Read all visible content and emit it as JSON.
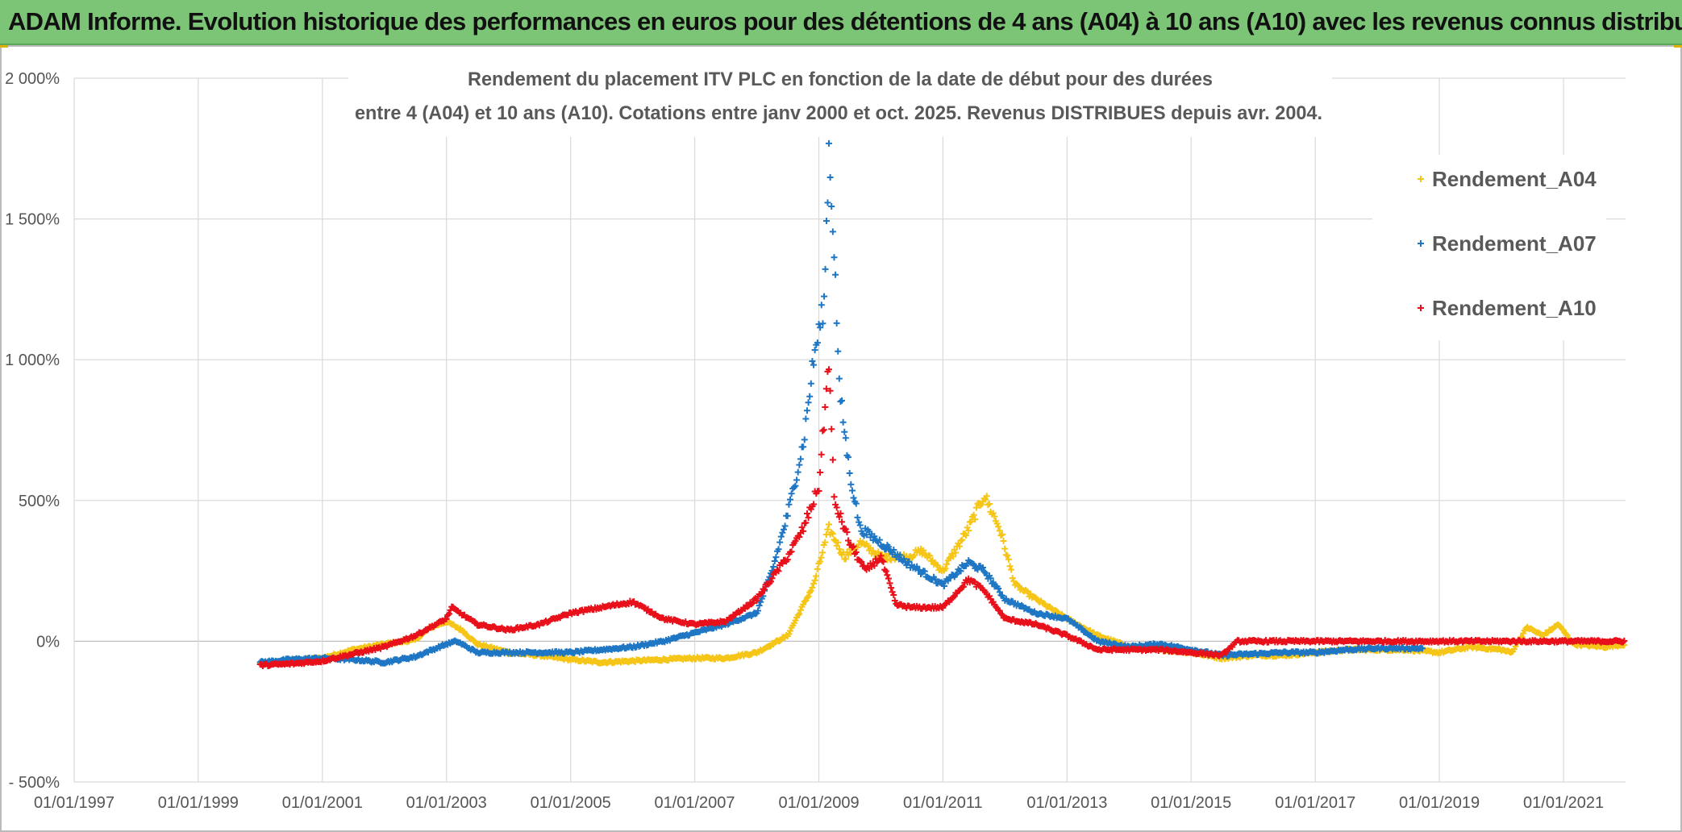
{
  "banner": {
    "title": "ADAM Informe. Evolution historique des performances en euros pour des détentions de 4 ans (A04) à 10 ans (A10) avec les revenus connus distribués"
  },
  "colors": {
    "banner_bg": "#7cc576",
    "A04": "#f5c518",
    "A07": "#1f77c4",
    "A10": "#e8101a",
    "grid": "#d9d9d9"
  },
  "chart_data": {
    "type": "scatter",
    "title_line1": "Rendement du placement ITV PLC en fonction de la date de début pour des durées",
    "title_line2": "entre 4 (A04) et 10 ans (A10). Cotations entre janv 2000 et oct. 2025. Revenus DISTRIBUES depuis avr. 2004.",
    "xlabel": "",
    "ylabel": "",
    "x_axis": "date",
    "xlim": [
      "1997-01-01",
      "2022-01-01"
    ],
    "ylim": [
      -500,
      2000
    ],
    "y_ticks": [
      -500,
      0,
      500,
      1000,
      1500,
      2000
    ],
    "y_tick_labels": [
      "- 500%",
      "0%",
      "500%",
      "1 000%",
      "1 500%",
      "2 000%"
    ],
    "x_ticks": [
      "1997-01-01",
      "1999-01-01",
      "2001-01-01",
      "2003-01-01",
      "2005-01-01",
      "2007-01-01",
      "2009-01-01",
      "2011-01-01",
      "2013-01-01",
      "2015-01-01",
      "2017-01-01",
      "2019-01-01",
      "2021-01-01"
    ],
    "x_tick_labels": [
      "01/01/1997",
      "01/01/1999",
      "01/01/2001",
      "01/01/2003",
      "01/01/2005",
      "01/01/2007",
      "01/01/2009",
      "01/01/2011",
      "01/01/2013",
      "01/01/2015",
      "01/01/2017",
      "01/01/2019",
      "01/01/2021"
    ],
    "grid": true,
    "legend_position": "top-right",
    "marker": "+",
    "series": [
      {
        "name": "Rendement_A04",
        "color": "#f5c518",
        "points": [
          [
            "2000-01-01",
            -80
          ],
          [
            "2000-07-01",
            -70
          ],
          [
            "2001-01-01",
            -60
          ],
          [
            "2001-07-01",
            -30
          ],
          [
            "2002-01-01",
            -10
          ],
          [
            "2002-07-01",
            5
          ],
          [
            "2002-10-01",
            50
          ],
          [
            "2003-01-01",
            70
          ],
          [
            "2003-04-01",
            40
          ],
          [
            "2003-07-01",
            -10
          ],
          [
            "2004-01-01",
            -40
          ],
          [
            "2004-07-01",
            -50
          ],
          [
            "2005-01-01",
            -65
          ],
          [
            "2005-07-01",
            -75
          ],
          [
            "2006-01-01",
            -70
          ],
          [
            "2006-07-01",
            -65
          ],
          [
            "2007-01-01",
            -60
          ],
          [
            "2007-07-01",
            -60
          ],
          [
            "2008-01-01",
            -40
          ],
          [
            "2008-07-01",
            20
          ],
          [
            "2008-12-01",
            200
          ],
          [
            "2009-03-01",
            400
          ],
          [
            "2009-06-01",
            300
          ],
          [
            "2009-09-01",
            350
          ],
          [
            "2010-01-01",
            300
          ],
          [
            "2010-06-01",
            300
          ],
          [
            "2010-09-01",
            320
          ],
          [
            "2011-01-01",
            250
          ],
          [
            "2011-06-01",
            400
          ],
          [
            "2011-09-01",
            520
          ],
          [
            "2011-12-01",
            400
          ],
          [
            "2012-03-01",
            200
          ],
          [
            "2012-07-01",
            150
          ],
          [
            "2013-01-01",
            80
          ],
          [
            "2013-07-01",
            20
          ],
          [
            "2014-01-01",
            -20
          ],
          [
            "2014-07-01",
            -30
          ],
          [
            "2015-01-01",
            -40
          ],
          [
            "2015-07-01",
            -60
          ],
          [
            "2016-01-01",
            -50
          ],
          [
            "2016-07-01",
            -50
          ],
          [
            "2017-01-01",
            -40
          ],
          [
            "2017-07-01",
            -30
          ],
          [
            "2018-01-01",
            -30
          ],
          [
            "2018-07-01",
            -30
          ],
          [
            "2019-01-01",
            -40
          ],
          [
            "2019-07-01",
            -20
          ],
          [
            "2020-01-01",
            -30
          ],
          [
            "2020-03-01",
            -40
          ],
          [
            "2020-06-01",
            50
          ],
          [
            "2020-09-01",
            20
          ],
          [
            "2020-12-01",
            60
          ],
          [
            "2021-03-01",
            -10
          ],
          [
            "2021-09-01",
            -20
          ],
          [
            "2022-01-01",
            -10
          ]
        ]
      },
      {
        "name": "Rendement_A07",
        "color": "#1f77c4",
        "points": [
          [
            "2000-01-01",
            -75
          ],
          [
            "2000-07-01",
            -65
          ],
          [
            "2001-01-01",
            -60
          ],
          [
            "2001-07-01",
            -65
          ],
          [
            "2002-01-01",
            -75
          ],
          [
            "2002-07-01",
            -55
          ],
          [
            "2003-01-01",
            -10
          ],
          [
            "2003-03-01",
            0
          ],
          [
            "2003-07-01",
            -40
          ],
          [
            "2004-01-01",
            -40
          ],
          [
            "2004-07-01",
            -40
          ],
          [
            "2005-01-01",
            -40
          ],
          [
            "2005-07-01",
            -30
          ],
          [
            "2006-01-01",
            -20
          ],
          [
            "2006-07-01",
            0
          ],
          [
            "2007-01-01",
            30
          ],
          [
            "2007-07-01",
            60
          ],
          [
            "2008-01-01",
            100
          ],
          [
            "2008-04-01",
            250
          ],
          [
            "2008-07-01",
            450
          ],
          [
            "2008-10-01",
            700
          ],
          [
            "2008-12-01",
            1000
          ],
          [
            "2009-02-01",
            1200
          ],
          [
            "2009-03-01",
            1750
          ],
          [
            "2009-04-01",
            1400
          ],
          [
            "2009-05-01",
            900
          ],
          [
            "2009-07-01",
            600
          ],
          [
            "2009-09-01",
            400
          ],
          [
            "2010-01-01",
            350
          ],
          [
            "2010-06-01",
            280
          ],
          [
            "2011-01-01",
            200
          ],
          [
            "2011-06-01",
            280
          ],
          [
            "2011-09-01",
            250
          ],
          [
            "2012-01-01",
            150
          ],
          [
            "2012-07-01",
            100
          ],
          [
            "2013-01-01",
            80
          ],
          [
            "2013-07-01",
            0
          ],
          [
            "2014-01-01",
            -20
          ],
          [
            "2014-07-01",
            -10
          ],
          [
            "2015-01-01",
            -30
          ],
          [
            "2015-07-01",
            -50
          ],
          [
            "2016-01-01",
            -45
          ],
          [
            "2016-07-01",
            -40
          ],
          [
            "2017-01-01",
            -40
          ],
          [
            "2017-07-01",
            -30
          ],
          [
            "2018-01-01",
            -25
          ],
          [
            "2018-07-01",
            -25
          ],
          [
            "2018-10-01",
            -25
          ]
        ]
      },
      {
        "name": "Rendement_A10",
        "color": "#e8101a",
        "points": [
          [
            "2000-01-01",
            -85
          ],
          [
            "2000-07-01",
            -80
          ],
          [
            "2001-01-01",
            -70
          ],
          [
            "2001-07-01",
            -45
          ],
          [
            "2002-01-01",
            -20
          ],
          [
            "2002-07-01",
            20
          ],
          [
            "2003-01-01",
            80
          ],
          [
            "2003-02-01",
            120
          ],
          [
            "2003-07-01",
            60
          ],
          [
            "2004-01-01",
            40
          ],
          [
            "2004-07-01",
            60
          ],
          [
            "2005-01-01",
            100
          ],
          [
            "2005-07-01",
            120
          ],
          [
            "2006-01-01",
            140
          ],
          [
            "2006-07-01",
            80
          ],
          [
            "2007-01-01",
            60
          ],
          [
            "2007-07-01",
            70
          ],
          [
            "2008-01-01",
            150
          ],
          [
            "2008-07-01",
            300
          ],
          [
            "2008-10-01",
            400
          ],
          [
            "2009-01-01",
            550
          ],
          [
            "2009-03-01",
            1000
          ],
          [
            "2009-04-01",
            500
          ],
          [
            "2009-07-01",
            350
          ],
          [
            "2009-10-01",
            250
          ],
          [
            "2010-01-01",
            300
          ],
          [
            "2010-04-01",
            130
          ],
          [
            "2010-07-01",
            120
          ],
          [
            "2011-01-01",
            120
          ],
          [
            "2011-06-01",
            220
          ],
          [
            "2011-09-01",
            180
          ],
          [
            "2012-01-01",
            80
          ],
          [
            "2012-07-01",
            60
          ],
          [
            "2013-01-01",
            20
          ],
          [
            "2013-07-01",
            -30
          ],
          [
            "2014-01-01",
            -30
          ],
          [
            "2014-07-01",
            -30
          ],
          [
            "2015-01-01",
            -40
          ],
          [
            "2015-07-01",
            -50
          ],
          [
            "2015-10-01",
            0
          ],
          [
            "2016-07-01",
            0
          ],
          [
            "2017-01-01",
            0
          ],
          [
            "2018-01-01",
            0
          ],
          [
            "2019-01-01",
            0
          ],
          [
            "2020-01-01",
            0
          ],
          [
            "2021-01-01",
            0
          ],
          [
            "2022-01-01",
            0
          ]
        ]
      }
    ]
  }
}
